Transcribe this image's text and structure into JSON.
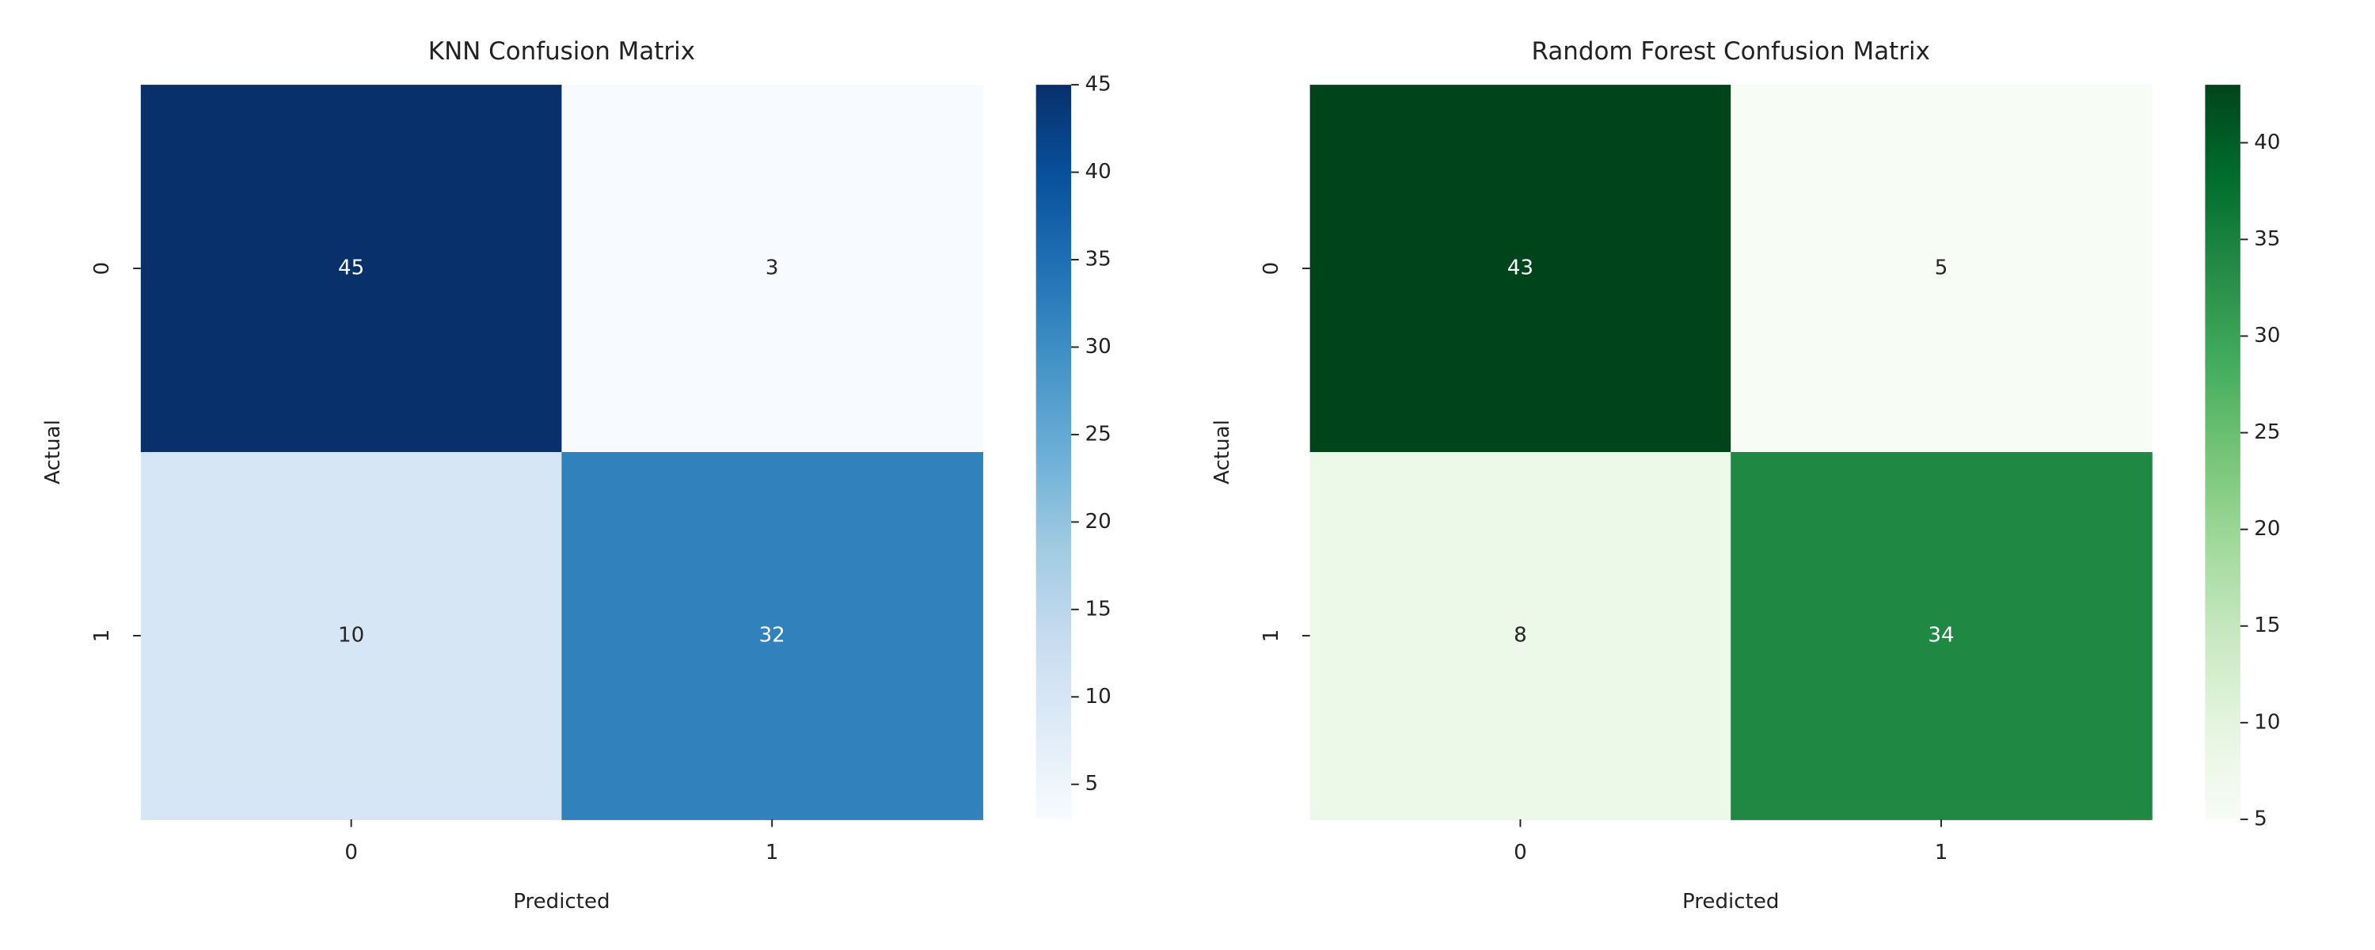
{
  "chart_data": [
    {
      "type": "heatmap",
      "title": "KNN Confusion Matrix",
      "xlabel": "Predicted",
      "ylabel": "Actual",
      "x_categories": [
        "0",
        "1"
      ],
      "y_categories": [
        "0",
        "1"
      ],
      "values": [
        [
          45,
          3
        ],
        [
          10,
          32
        ]
      ],
      "colormap": [
        "#f7fbff",
        "#deebf7",
        "#c6dbef",
        "#9ecae1",
        "#6baed6",
        "#4292c6",
        "#2171b5",
        "#08519c",
        "#08306b"
      ],
      "clim": [
        3,
        45
      ],
      "cticks": [
        5,
        10,
        15,
        20,
        25,
        30,
        35,
        40,
        45
      ]
    },
    {
      "type": "heatmap",
      "title": "Random Forest Confusion Matrix",
      "xlabel": "Predicted",
      "ylabel": "Actual",
      "x_categories": [
        "0",
        "1"
      ],
      "y_categories": [
        "0",
        "1"
      ],
      "values": [
        [
          43,
          5
        ],
        [
          8,
          34
        ]
      ],
      "colormap": [
        "#f7fcf5",
        "#e5f5e0",
        "#c7e9c0",
        "#a1d99b",
        "#74c476",
        "#41ab5d",
        "#238b45",
        "#006d2c",
        "#00441b"
      ],
      "clim": [
        5,
        43
      ],
      "cticks": [
        5,
        10,
        15,
        20,
        25,
        30,
        35,
        40
      ]
    }
  ]
}
